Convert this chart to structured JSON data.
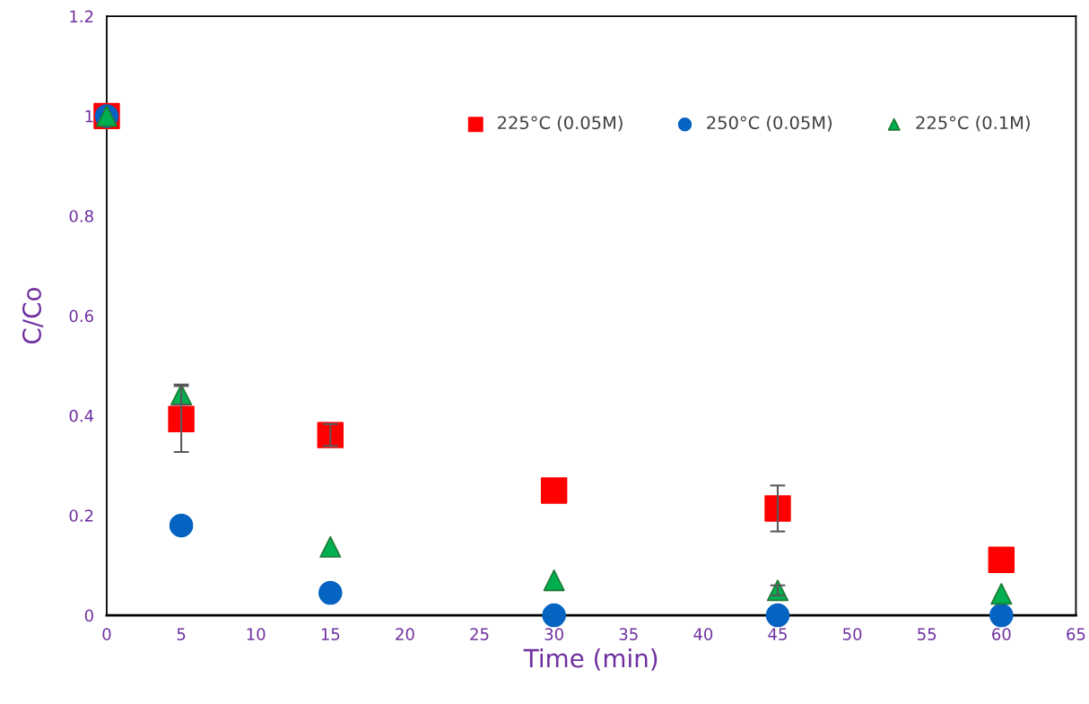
{
  "chart_data": {
    "type": "scatter",
    "xlabel": "Time (min)",
    "ylabel": "C/Co",
    "x": [
      0,
      5,
      15,
      30,
      45,
      60
    ],
    "xlim": [
      0,
      65
    ],
    "xticks": [
      0,
      5,
      10,
      15,
      20,
      25,
      30,
      35,
      40,
      45,
      50,
      55,
      60,
      65
    ],
    "ylim": [
      0,
      1.2
    ],
    "yticks": [
      0,
      0.2,
      0.4,
      0.6,
      0.8,
      1,
      1.2
    ],
    "grid": false,
    "legend": "top right",
    "series": [
      {
        "name": "225°C (0.05M)",
        "color": "#ff0000",
        "marker": "square",
        "values": [
          1,
          0.393,
          0.361,
          0.25,
          0.214,
          0.111
        ],
        "errors": [
          null,
          0.066,
          0.022,
          null,
          0.046,
          null
        ]
      },
      {
        "name": "250°C (0.05M)",
        "color": "#0563c1",
        "marker": "circle",
        "values": [
          1,
          0.18,
          0.045,
          0,
          0,
          0
        ]
      },
      {
        "name": "225°C (0.1M)",
        "color": "#00b050",
        "marker": "triangle",
        "values": [
          1,
          0.442,
          0.137,
          0.07,
          0.05,
          0.043
        ],
        "errors": [
          null,
          0.02,
          null,
          null,
          0.01,
          null
        ]
      }
    ]
  }
}
